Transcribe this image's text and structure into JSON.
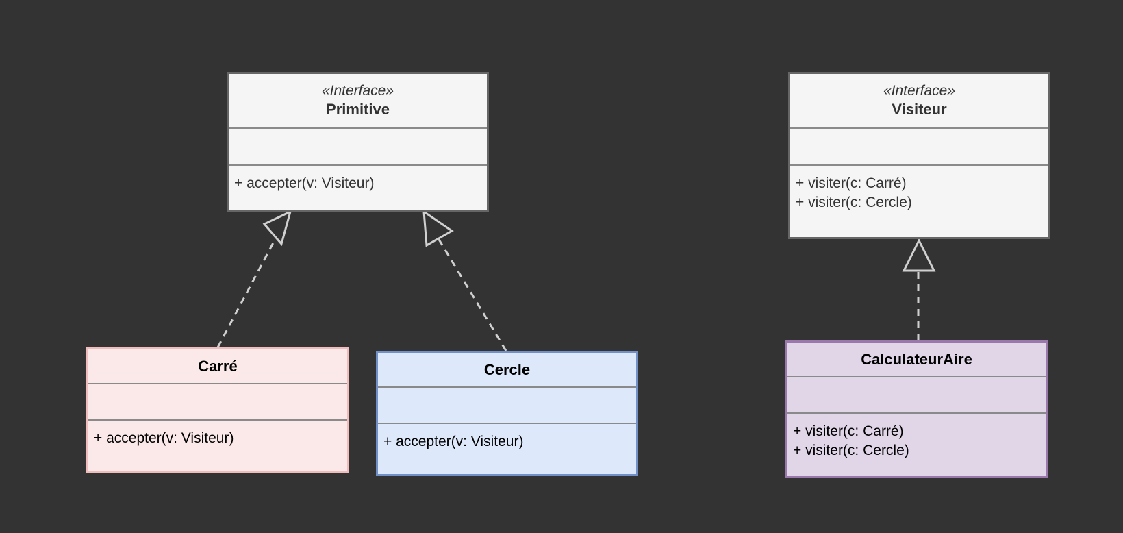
{
  "classes": {
    "primitive": {
      "stereotype": "«Interface»",
      "name": "Primitive",
      "methods": [
        "+ accepter(v: Visiteur)"
      ]
    },
    "visiteur": {
      "stereotype": "«Interface»",
      "name": "Visiteur",
      "methods": [
        "+ visiter(c: Carré)",
        "+ visiter(c: Cercle)"
      ]
    },
    "carre": {
      "name": "Carré",
      "methods": [
        "+ accepter(v: Visiteur)"
      ]
    },
    "cercle": {
      "name": "Cercle",
      "methods": [
        "+ accepter(v: Visiteur)"
      ]
    },
    "calculateur": {
      "name": "CalculateurAire",
      "methods": [
        "+ visiter(c: Carré)",
        "+ visiter(c: Cercle)"
      ]
    }
  },
  "colors": {
    "background": "#333333",
    "interface_fill": "#f5f5f5",
    "carre_fill": "#fbe8e8",
    "cercle_fill": "#dde8fb",
    "calculateur_fill": "#e1d5e8",
    "connector": "#d0d0d0"
  },
  "relations": [
    {
      "from": "Carré",
      "to": "Primitive",
      "type": "realization"
    },
    {
      "from": "Cercle",
      "to": "Primitive",
      "type": "realization"
    },
    {
      "from": "CalculateurAire",
      "to": "Visiteur",
      "type": "realization"
    }
  ]
}
